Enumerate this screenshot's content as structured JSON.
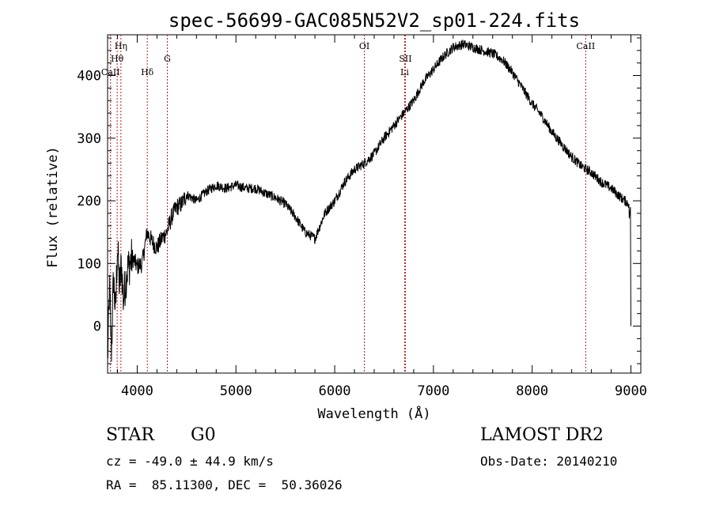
{
  "chart_data": {
    "type": "line",
    "title": "spec-56699-GAC085N52V2_sp01-224.fits",
    "xlabel": "Wavelength (Å)",
    "ylabel": "Flux (relative)",
    "xlim": [
      3700,
      9100
    ],
    "ylim": [
      -75,
      465
    ],
    "x_ticks": [
      4000,
      5000,
      6000,
      7000,
      8000,
      9000
    ],
    "y_ticks": [
      0,
      100,
      200,
      300,
      400
    ],
    "grid": false,
    "line_color": "#000000",
    "marker_color": "#b22222",
    "spectral_lines": [
      {
        "name": "Hη",
        "x": 3835,
        "row": 0
      },
      {
        "name": "Hθ",
        "x": 3797,
        "row": 1
      },
      {
        "name": "G",
        "x": 4305,
        "row": 1
      },
      {
        "name": "CaII",
        "x": 3730,
        "row": 2
      },
      {
        "name": "Hδ",
        "x": 4102,
        "row": 2
      },
      {
        "name": "OI",
        "x": 6300,
        "row": 0
      },
      {
        "name": "SII",
        "x": 6716,
        "row": 1
      },
      {
        "name": "Li",
        "x": 6708,
        "row": 2
      },
      {
        "name": "CaII",
        "x": 8542,
        "row": 0
      }
    ],
    "series": [
      {
        "x": [
          3700,
          3720,
          3740,
          3760,
          3780,
          3800,
          3820,
          3840,
          3860,
          3880,
          3900,
          3950,
          4000,
          4050,
          4100,
          4150,
          4200,
          4250,
          4300,
          4350,
          4400,
          4450,
          4500,
          4600,
          4700,
          4800,
          4900,
          5000,
          5100,
          5200,
          5300,
          5400,
          5500,
          5600,
          5700,
          5800,
          5900,
          6000,
          6100,
          6200,
          6300,
          6400,
          6500,
          6600,
          6700,
          6800,
          6900,
          7000,
          7100,
          7200,
          7300,
          7400,
          7500,
          7600,
          7700,
          7800,
          7900,
          8000,
          8100,
          8200,
          8300,
          8400,
          8500,
          8600,
          8700,
          8800,
          8900,
          8980,
          9000
        ],
        "y": [
          -55,
          60,
          -40,
          80,
          20,
          130,
          60,
          100,
          40,
          70,
          90,
          110,
          95,
          100,
          150,
          135,
          125,
          140,
          150,
          175,
          190,
          195,
          210,
          200,
          215,
          225,
          220,
          225,
          220,
          220,
          212,
          205,
          195,
          175,
          150,
          140,
          180,
          200,
          230,
          250,
          260,
          275,
          300,
          320,
          340,
          360,
          390,
          410,
          430,
          445,
          450,
          445,
          440,
          435,
          425,
          405,
          380,
          355,
          335,
          310,
          290,
          270,
          255,
          245,
          230,
          220,
          205,
          195,
          0
        ]
      }
    ]
  },
  "info": {
    "class": "STAR",
    "subclass": "G0",
    "survey": "LAMOST DR2",
    "cz": "cz = -49.0 ± 44.9 km/s",
    "obs_date": "Obs-Date: 20140210",
    "coords": "RA =  85.11300, DEC =  50.36026"
  }
}
